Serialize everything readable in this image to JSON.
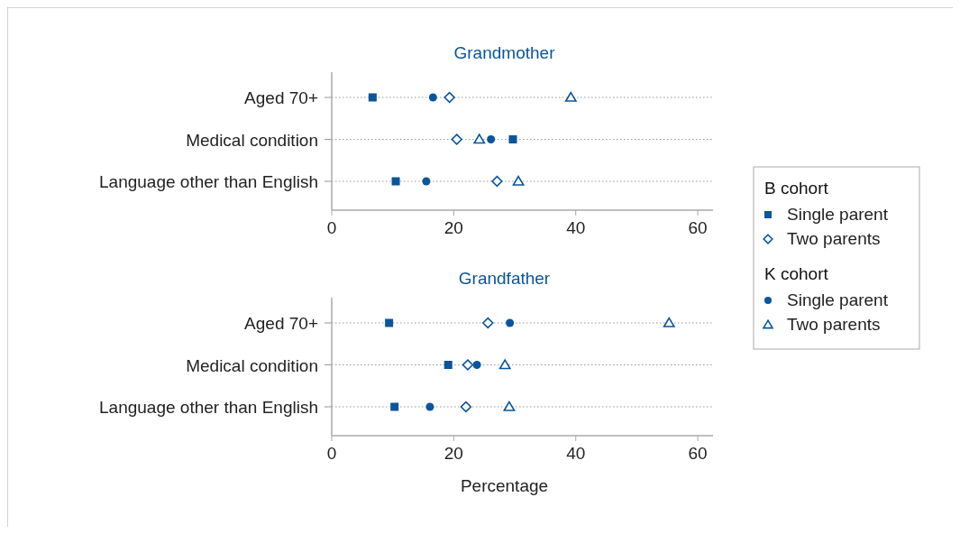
{
  "chart_data": [
    {
      "type": "scatter",
      "title": "Grandmother",
      "orientation": "horizontal",
      "categories": [
        "Aged 70+",
        "Medical condition",
        "Language other than English"
      ],
      "xlim": [
        0,
        62.5
      ],
      "xticks": [
        0,
        20,
        40,
        60
      ],
      "grid": "y",
      "legend": "right",
      "legend_title": [
        "B cohort",
        "K cohort"
      ],
      "series": [
        {
          "name": "Single parent",
          "color": "#0a559b",
          "marker": "square",
          "values": [
            6.7,
            29.7,
            10.5
          ]
        },
        {
          "name": "Two parents",
          "color": "#0a559b",
          "marker": "diamond",
          "values": [
            19.3,
            20.5,
            27.1
          ]
        },
        {
          "name": "Single parent",
          "color": "#0a559b",
          "marker": "circle",
          "values": [
            16.6,
            26.1,
            15.5
          ]
        },
        {
          "name": "Two parents",
          "color": "#0a559b",
          "marker": "triangle",
          "values": [
            39.2,
            24.2,
            30.6
          ]
        }
      ]
    },
    {
      "type": "scatter",
      "title": "Grandfather",
      "xlabel": "Percentage",
      "orientation": "horizontal",
      "categories": [
        "Aged 70+",
        "Medical condition",
        "Language other than English"
      ],
      "xlim": [
        0,
        62.5
      ],
      "xticks": [
        0,
        20,
        40,
        60
      ],
      "grid": "y",
      "series": [
        {
          "color": "#0a559b",
          "marker": "square",
          "values": [
            9.4,
            19.1,
            10.3
          ]
        },
        {
          "color": "#0a559b",
          "marker": "diamond",
          "values": [
            25.6,
            22.3,
            22.0
          ]
        },
        {
          "color": "#0a559b",
          "marker": "circle",
          "values": [
            29.2,
            23.8,
            16.1
          ]
        },
        {
          "color": "#0a559b",
          "marker": "triangle",
          "values": [
            55.3,
            28.4,
            29.1
          ]
        }
      ]
    }
  ]
}
